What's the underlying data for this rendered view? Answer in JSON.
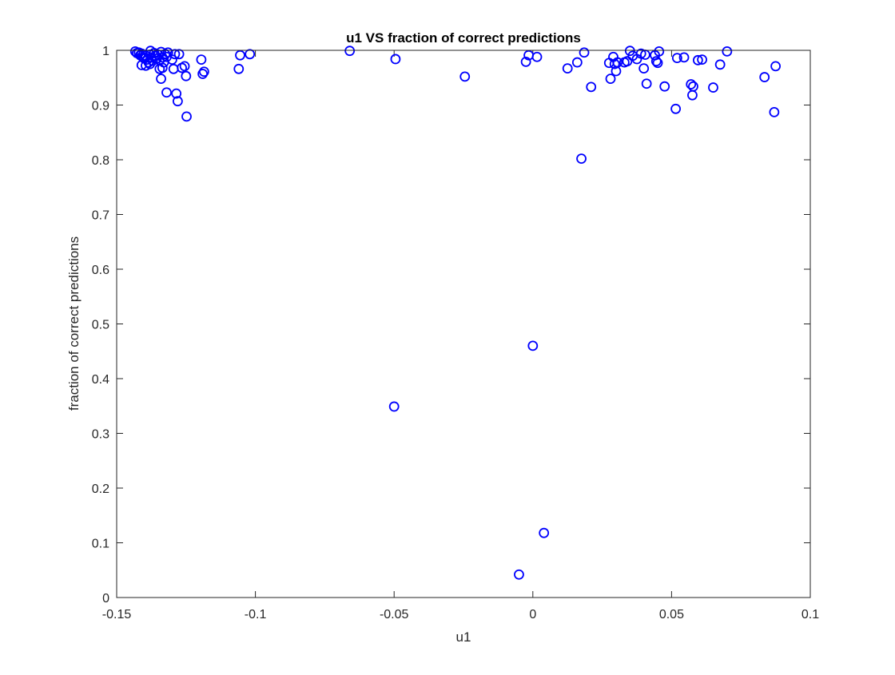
{
  "chart_data": {
    "type": "scatter",
    "title": "u1 VS fraction of correct predictions",
    "xlabel": "u1",
    "ylabel": "fraction of correct predictions",
    "xlim": [
      -0.15,
      0.1
    ],
    "ylim": [
      0,
      1
    ],
    "xticks": [
      -0.15,
      -0.1,
      -0.05,
      0,
      0.05,
      0.1
    ],
    "xtick_labels": [
      "-0.15",
      "-0.1",
      "-0.05",
      "0",
      "0.05",
      "0.1"
    ],
    "yticks": [
      0,
      0.1,
      0.2,
      0.3,
      0.4,
      0.5,
      0.6,
      0.7,
      0.8,
      0.9,
      1
    ],
    "ytick_labels": [
      "0",
      "0.1",
      "0.2",
      "0.3",
      "0.4",
      "0.5",
      "0.6",
      "0.7",
      "0.8",
      "0.9",
      "1"
    ],
    "grid": false,
    "marker": "circle-open",
    "marker_color": "#0000ff",
    "series": [
      {
        "points": [
          [
            -0.1433,
            0.998
          ],
          [
            -0.1427,
            0.995
          ],
          [
            -0.142,
            0.996
          ],
          [
            -0.1415,
            0.991
          ],
          [
            -0.141,
            0.994
          ],
          [
            -0.1405,
            0.987
          ],
          [
            -0.14,
            0.985
          ],
          [
            -0.1395,
            0.99
          ],
          [
            -0.139,
            0.983
          ],
          [
            -0.1385,
            0.978
          ],
          [
            -0.138,
            0.992
          ],
          [
            -0.1378,
            0.999
          ],
          [
            -0.1375,
            0.987
          ],
          [
            -0.137,
            0.981
          ],
          [
            -0.1365,
            0.995
          ],
          [
            -0.136,
            0.99
          ],
          [
            -0.1355,
            0.985
          ],
          [
            -0.135,
            0.992
          ],
          [
            -0.1345,
            0.982
          ],
          [
            -0.134,
            0.997
          ],
          [
            -0.1335,
            0.987
          ],
          [
            -0.133,
            0.978
          ],
          [
            -0.1325,
            0.993
          ],
          [
            -0.132,
            0.988
          ],
          [
            -0.1315,
            0.996
          ],
          [
            -0.141,
            0.973
          ],
          [
            -0.1395,
            0.972
          ],
          [
            -0.138,
            0.975
          ],
          [
            -0.1345,
            0.966
          ],
          [
            -0.134,
            0.948
          ],
          [
            -0.1335,
            0.968
          ],
          [
            -0.132,
            0.923
          ],
          [
            -0.13,
            0.983
          ],
          [
            -0.1295,
            0.966
          ],
          [
            -0.129,
            0.993
          ],
          [
            -0.1285,
            0.921
          ],
          [
            -0.128,
            0.907
          ],
          [
            -0.1275,
            0.993
          ],
          [
            -0.1265,
            0.968
          ],
          [
            -0.1255,
            0.971
          ],
          [
            -0.125,
            0.953
          ],
          [
            -0.1248,
            0.879
          ],
          [
            -0.1195,
            0.983
          ],
          [
            -0.119,
            0.957
          ],
          [
            -0.1185,
            0.961
          ],
          [
            -0.106,
            0.966
          ],
          [
            -0.1055,
            0.991
          ],
          [
            -0.102,
            0.993
          ],
          [
            -0.066,
            0.999
          ],
          [
            -0.0495,
            0.984
          ],
          [
            -0.0245,
            0.952
          ],
          [
            -0.0025,
            0.979
          ],
          [
            -0.0015,
            0.991
          ],
          [
            0.0015,
            0.988
          ],
          [
            0.0125,
            0.967
          ],
          [
            0.016,
            0.978
          ],
          [
            0.0185,
            0.996
          ],
          [
            0.021,
            0.933
          ],
          [
            0.0275,
            0.977
          ],
          [
            0.028,
            0.948
          ],
          [
            0.029,
            0.988
          ],
          [
            0.0295,
            0.975
          ],
          [
            0.03,
            0.962
          ],
          [
            0.0305,
            0.978
          ],
          [
            0.033,
            0.978
          ],
          [
            0.034,
            0.98
          ],
          [
            0.035,
            0.999
          ],
          [
            0.036,
            0.99
          ],
          [
            0.0375,
            0.984
          ],
          [
            0.039,
            0.994
          ],
          [
            0.04,
            0.967
          ],
          [
            0.0405,
            0.992
          ],
          [
            0.041,
            0.939
          ],
          [
            0.044,
            0.991
          ],
          [
            0.0445,
            0.98
          ],
          [
            0.045,
            0.977
          ],
          [
            0.0455,
            0.998
          ],
          [
            0.0475,
            0.934
          ],
          [
            0.0515,
            0.893
          ],
          [
            0.052,
            0.986
          ],
          [
            0.0545,
            0.987
          ],
          [
            0.057,
            0.938
          ],
          [
            0.0575,
            0.918
          ],
          [
            0.0578,
            0.934
          ],
          [
            0.0595,
            0.982
          ],
          [
            0.061,
            0.983
          ],
          [
            0.065,
            0.932
          ],
          [
            0.0675,
            0.974
          ],
          [
            0.07,
            0.998
          ],
          [
            0.0835,
            0.951
          ],
          [
            0.087,
            0.887
          ],
          [
            0.0875,
            0.971
          ],
          [
            0.0175,
            0.802
          ],
          [
            0.0,
            0.46
          ],
          [
            -0.05,
            0.349
          ],
          [
            0.004,
            0.118
          ],
          [
            -0.005,
            0.042
          ]
        ]
      }
    ]
  }
}
